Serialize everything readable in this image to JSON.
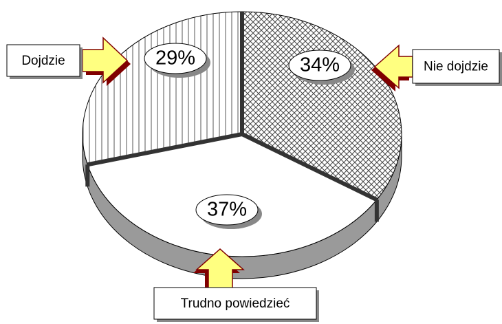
{
  "chart_data": {
    "type": "pie",
    "categories": [
      "Dojdzie",
      "Nie dojdzie",
      "Trudno powiedzieć"
    ],
    "values": [
      29,
      34,
      37
    ],
    "value_labels": [
      "29%",
      "34%",
      "37%"
    ]
  }
}
